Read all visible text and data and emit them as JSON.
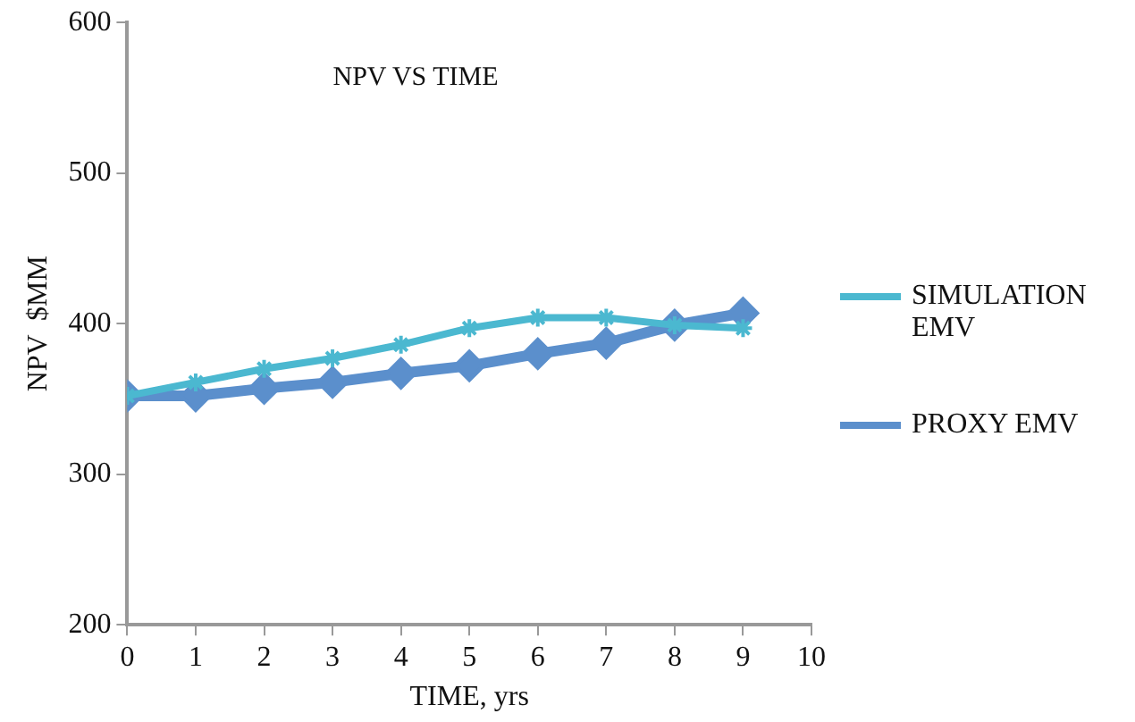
{
  "chart_data": {
    "type": "line",
    "title": "NPV VS TIME",
    "xlabel": "TIME, yrs",
    "ylabel": "NPV  $MM",
    "x": [
      0,
      1,
      2,
      3,
      4,
      5,
      6,
      7,
      8,
      9
    ],
    "series": [
      {
        "name": "SIMULATION EMV",
        "color": "#4bb8d0",
        "marker": "cross",
        "values": [
          352,
          361,
          370,
          377,
          386,
          397,
          404,
          404,
          399,
          397
        ]
      },
      {
        "name": "PROXY EMV",
        "color": "#5b8fcc",
        "marker": "diamond",
        "values": [
          352,
          352,
          357,
          361,
          367,
          372,
          380,
          387,
          399,
          407
        ]
      }
    ],
    "xlim": [
      0,
      10
    ],
    "xticks": [
      0,
      1,
      2,
      3,
      4,
      5,
      6,
      7,
      8,
      9,
      10
    ],
    "ylim": [
      200,
      600
    ],
    "yticks": [
      200,
      300,
      400,
      500,
      600
    ],
    "grid": false,
    "legend": "right",
    "line_style": "solid"
  }
}
